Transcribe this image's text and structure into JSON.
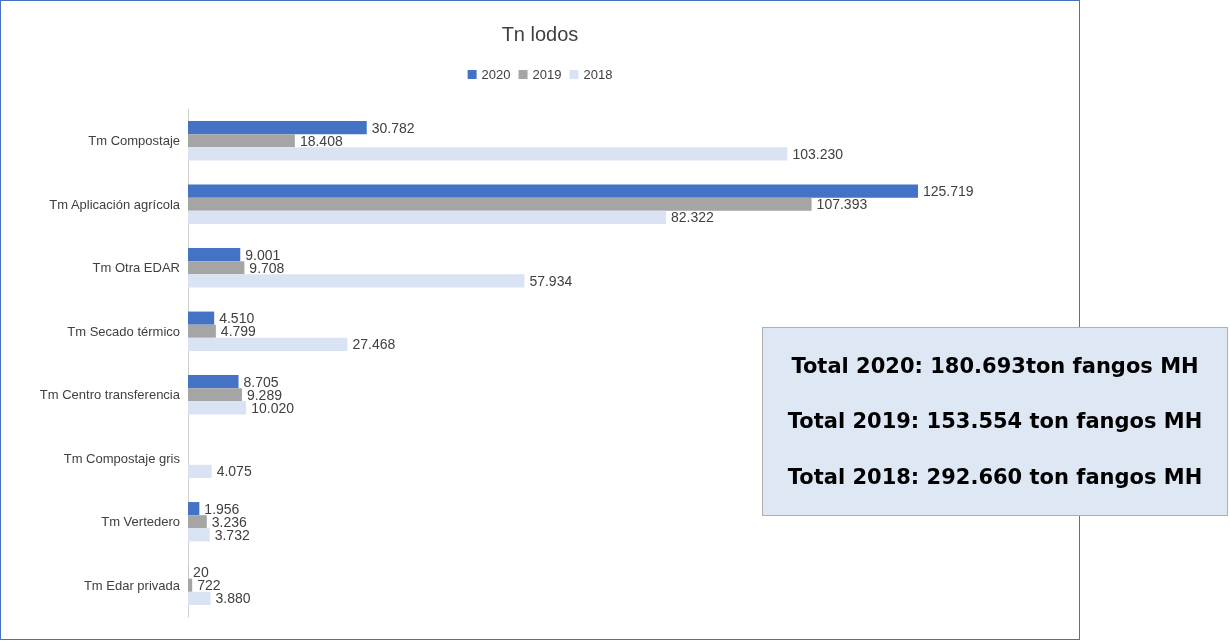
{
  "chart_data": {
    "type": "bar",
    "orientation": "horizontal",
    "title": "Tn lodos",
    "legend": "top",
    "categories": [
      "Tm Compostaje",
      "Tm Aplicación agrícola",
      "Tm Otra EDAR",
      "Tm Secado térmico",
      "Tm Centro transferencia",
      "Tm Compostaje gris",
      "Tm Vertedero",
      "Tm Edar privada"
    ],
    "series": [
      {
        "name": "2020",
        "color": "#4472c4",
        "values": [
          30782,
          125719,
          9001,
          4510,
          8705,
          null,
          1956,
          20
        ],
        "value_labels": [
          "30.782",
          "125.719",
          "9.001",
          "4.510",
          "8.705",
          null,
          "1.956",
          "20"
        ]
      },
      {
        "name": "2019",
        "color": "#a5a5a5",
        "values": [
          18408,
          107393,
          9708,
          4799,
          9289,
          null,
          3236,
          722
        ],
        "value_labels": [
          "18.408",
          "107.393",
          "9.708",
          "4.799",
          "9.289",
          null,
          "3.236",
          "722"
        ]
      },
      {
        "name": "2018",
        "color": "#dae3f3",
        "values": [
          103230,
          82322,
          57934,
          27468,
          10020,
          4075,
          3732,
          3880
        ],
        "value_labels": [
          "103.230",
          "82.322",
          "57.934",
          "27.468",
          "10.020",
          "4.075",
          "3.732",
          "3.880"
        ]
      }
    ],
    "annotations": [
      "Total 2020: 180.693ton fangos MH",
      "Total 2019: 153.554 ton fangos MH",
      "Total 2018: 292.660 ton fangos MH"
    ]
  }
}
